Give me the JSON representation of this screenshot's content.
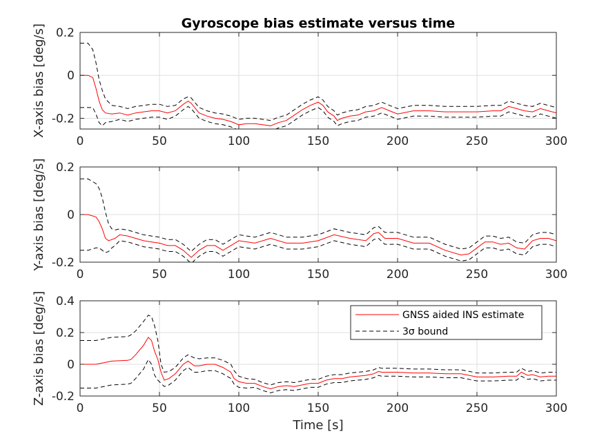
{
  "figure": {
    "title": "Gyroscope bias estimate versus time",
    "xlabel": "Time [s]"
  },
  "legend": {
    "placement": "upper-right-of-bottom-panel",
    "entries": [
      {
        "label": "GNSS aided INS estimate",
        "color": "#ff0000",
        "style": "solid"
      },
      {
        "label": "3σ bound",
        "color": "#000000",
        "style": "dashed"
      }
    ]
  },
  "chart_data": [
    {
      "type": "line",
      "ylabel": "X-axis bias [deg/s]",
      "xlim": [
        0,
        300
      ],
      "ylim": [
        -0.25,
        0.2
      ],
      "xticks": [
        0,
        50,
        100,
        150,
        200,
        250,
        300
      ],
      "yticks": [
        -0.2,
        0,
        0.2
      ],
      "ytick_labels": [
        "-0.2",
        "0",
        "0.2"
      ],
      "grid": true,
      "x": [
        0,
        5,
        8,
        10,
        12,
        14,
        16,
        20,
        25,
        30,
        35,
        40,
        45,
        50,
        55,
        60,
        65,
        68,
        70,
        75,
        80,
        85,
        90,
        95,
        100,
        105,
        110,
        115,
        120,
        125,
        130,
        135,
        140,
        145,
        150,
        153,
        156,
        160,
        162,
        165,
        170,
        175,
        180,
        185,
        190,
        195,
        200,
        210,
        220,
        230,
        240,
        250,
        260,
        265,
        270,
        275,
        280,
        285,
        290,
        295,
        300
      ],
      "series": [
        {
          "name": "GNSS aided INS estimate",
          "role": "estimate",
          "color": "#ff0000",
          "values": [
            0,
            0,
            -0.01,
            -0.06,
            -0.12,
            -0.16,
            -0.175,
            -0.18,
            -0.175,
            -0.185,
            -0.175,
            -0.17,
            -0.165,
            -0.165,
            -0.175,
            -0.165,
            -0.135,
            -0.12,
            -0.13,
            -0.175,
            -0.19,
            -0.2,
            -0.205,
            -0.215,
            -0.23,
            -0.225,
            -0.225,
            -0.23,
            -0.235,
            -0.22,
            -0.21,
            -0.185,
            -0.16,
            -0.14,
            -0.125,
            -0.14,
            -0.17,
            -0.19,
            -0.21,
            -0.2,
            -0.19,
            -0.185,
            -0.17,
            -0.165,
            -0.15,
            -0.165,
            -0.18,
            -0.165,
            -0.165,
            -0.17,
            -0.17,
            -0.17,
            -0.165,
            -0.165,
            -0.145,
            -0.155,
            -0.165,
            -0.17,
            -0.155,
            -0.165,
            -0.175
          ]
        },
        {
          "name": "3σ bound",
          "role": "upper",
          "color": "#000000",
          "values": [
            0.15,
            0.15,
            0.12,
            0.06,
            -0.02,
            -0.07,
            -0.11,
            -0.14,
            -0.145,
            -0.155,
            -0.145,
            -0.14,
            -0.135,
            -0.135,
            -0.145,
            -0.14,
            -0.11,
            -0.1,
            -0.105,
            -0.15,
            -0.165,
            -0.175,
            -0.18,
            -0.19,
            -0.205,
            -0.2,
            -0.2,
            -0.205,
            -0.21,
            -0.195,
            -0.185,
            -0.16,
            -0.135,
            -0.115,
            -0.1,
            -0.115,
            -0.145,
            -0.165,
            -0.185,
            -0.175,
            -0.165,
            -0.16,
            -0.145,
            -0.14,
            -0.125,
            -0.14,
            -0.155,
            -0.14,
            -0.14,
            -0.145,
            -0.145,
            -0.145,
            -0.14,
            -0.14,
            -0.12,
            -0.13,
            -0.14,
            -0.145,
            -0.13,
            -0.14,
            -0.15
          ]
        },
        {
          "name": "3σ bound",
          "role": "lower",
          "color": "#000000",
          "values": [
            -0.15,
            -0.15,
            -0.15,
            -0.18,
            -0.22,
            -0.235,
            -0.22,
            -0.215,
            -0.205,
            -0.215,
            -0.205,
            -0.2,
            -0.195,
            -0.195,
            -0.205,
            -0.19,
            -0.16,
            -0.145,
            -0.155,
            -0.2,
            -0.215,
            -0.225,
            -0.23,
            -0.24,
            -0.255,
            -0.25,
            -0.25,
            -0.255,
            -0.26,
            -0.245,
            -0.235,
            -0.21,
            -0.185,
            -0.165,
            -0.15,
            -0.165,
            -0.195,
            -0.215,
            -0.235,
            -0.225,
            -0.215,
            -0.21,
            -0.195,
            -0.19,
            -0.175,
            -0.19,
            -0.205,
            -0.19,
            -0.19,
            -0.195,
            -0.195,
            -0.195,
            -0.19,
            -0.19,
            -0.17,
            -0.18,
            -0.19,
            -0.195,
            -0.18,
            -0.19,
            -0.2
          ]
        }
      ]
    },
    {
      "type": "line",
      "ylabel": "Y-axis bias [deg/s]",
      "xlim": [
        0,
        300
      ],
      "ylim": [
        -0.2,
        0.2
      ],
      "xticks": [
        0,
        50,
        100,
        150,
        200,
        250,
        300
      ],
      "yticks": [
        -0.2,
        0,
        0.2
      ],
      "ytick_labels": [
        "-0.2",
        "0",
        "0.2"
      ],
      "grid": true,
      "x": [
        0,
        5,
        10,
        12,
        14,
        16,
        18,
        20,
        22,
        25,
        30,
        35,
        40,
        45,
        50,
        55,
        60,
        65,
        70,
        75,
        80,
        85,
        90,
        95,
        100,
        110,
        120,
        130,
        140,
        150,
        160,
        170,
        180,
        185,
        188,
        192,
        200,
        210,
        220,
        230,
        240,
        245,
        250,
        255,
        260,
        265,
        270,
        275,
        280,
        285,
        290,
        295,
        300
      ],
      "series": [
        {
          "name": "GNSS aided INS estimate",
          "role": "estimate",
          "color": "#ff0000",
          "values": [
            0,
            0,
            -0.01,
            -0.03,
            -0.06,
            -0.1,
            -0.11,
            -0.105,
            -0.1,
            -0.085,
            -0.09,
            -0.1,
            -0.11,
            -0.115,
            -0.12,
            -0.13,
            -0.13,
            -0.15,
            -0.18,
            -0.15,
            -0.13,
            -0.13,
            -0.15,
            -0.13,
            -0.11,
            -0.12,
            -0.1,
            -0.12,
            -0.12,
            -0.11,
            -0.085,
            -0.1,
            -0.11,
            -0.08,
            -0.075,
            -0.1,
            -0.1,
            -0.12,
            -0.12,
            -0.15,
            -0.17,
            -0.165,
            -0.14,
            -0.115,
            -0.115,
            -0.125,
            -0.12,
            -0.14,
            -0.145,
            -0.11,
            -0.1,
            -0.1,
            -0.11
          ]
        },
        {
          "name": "3σ bound",
          "role": "upper",
          "color": "#000000",
          "values": [
            0.15,
            0.15,
            0.13,
            0.11,
            0.07,
            0.01,
            -0.04,
            -0.06,
            -0.065,
            -0.06,
            -0.065,
            -0.075,
            -0.085,
            -0.09,
            -0.095,
            -0.105,
            -0.105,
            -0.125,
            -0.155,
            -0.125,
            -0.105,
            -0.105,
            -0.125,
            -0.105,
            -0.085,
            -0.095,
            -0.075,
            -0.095,
            -0.095,
            -0.085,
            -0.06,
            -0.075,
            -0.085,
            -0.055,
            -0.05,
            -0.075,
            -0.075,
            -0.095,
            -0.095,
            -0.125,
            -0.145,
            -0.14,
            -0.115,
            -0.09,
            -0.09,
            -0.1,
            -0.095,
            -0.115,
            -0.12,
            -0.085,
            -0.075,
            -0.075,
            -0.085
          ]
        },
        {
          "name": "3σ bound",
          "role": "lower",
          "color": "#000000",
          "values": [
            -0.15,
            -0.15,
            -0.14,
            -0.14,
            -0.15,
            -0.16,
            -0.155,
            -0.14,
            -0.13,
            -0.11,
            -0.115,
            -0.125,
            -0.135,
            -0.14,
            -0.145,
            -0.155,
            -0.155,
            -0.175,
            -0.205,
            -0.175,
            -0.155,
            -0.155,
            -0.175,
            -0.155,
            -0.135,
            -0.145,
            -0.125,
            -0.145,
            -0.145,
            -0.135,
            -0.11,
            -0.125,
            -0.135,
            -0.105,
            -0.1,
            -0.125,
            -0.125,
            -0.145,
            -0.145,
            -0.175,
            -0.195,
            -0.19,
            -0.165,
            -0.14,
            -0.14,
            -0.15,
            -0.145,
            -0.165,
            -0.17,
            -0.135,
            -0.125,
            -0.125,
            -0.135
          ]
        }
      ]
    },
    {
      "type": "line",
      "ylabel": "Z-axis bias [deg/s]",
      "xlim": [
        0,
        300
      ],
      "ylim": [
        -0.2,
        0.4
      ],
      "xticks": [
        0,
        50,
        100,
        150,
        200,
        250,
        300
      ],
      "yticks": [
        -0.2,
        0,
        0.2,
        0.4
      ],
      "ytick_labels": [
        "-0.2",
        "0",
        "0.2",
        "0.4"
      ],
      "grid": true,
      "x": [
        0,
        10,
        15,
        20,
        30,
        32,
        35,
        40,
        43,
        45,
        47,
        49,
        51,
        53,
        56,
        60,
        65,
        68,
        72,
        75,
        80,
        85,
        90,
        95,
        97,
        100,
        105,
        110,
        115,
        120,
        125,
        130,
        135,
        140,
        145,
        150,
        155,
        160,
        165,
        170,
        175,
        180,
        185,
        188,
        190,
        195,
        200,
        210,
        220,
        230,
        240,
        250,
        260,
        270,
        275,
        278,
        282,
        285,
        290,
        295,
        300
      ],
      "series": [
        {
          "name": "GNSS aided INS estimate",
          "role": "estimate",
          "color": "#ff0000",
          "values": [
            0,
            0,
            0.01,
            0.02,
            0.025,
            0.03,
            0.06,
            0.12,
            0.17,
            0.15,
            0.08,
            0.03,
            -0.05,
            -0.1,
            -0.09,
            -0.06,
            0.0,
            0.02,
            -0.01,
            -0.01,
            -0.0,
            0.0,
            -0.02,
            -0.05,
            -0.09,
            -0.11,
            -0.12,
            -0.12,
            -0.14,
            -0.155,
            -0.14,
            -0.135,
            -0.14,
            -0.13,
            -0.12,
            -0.12,
            -0.1,
            -0.09,
            -0.09,
            -0.08,
            -0.075,
            -0.07,
            -0.06,
            -0.045,
            -0.05,
            -0.05,
            -0.05,
            -0.055,
            -0.055,
            -0.06,
            -0.06,
            -0.08,
            -0.08,
            -0.075,
            -0.075,
            -0.05,
            -0.07,
            -0.065,
            -0.08,
            -0.075,
            -0.075
          ]
        },
        {
          "name": "3σ bound",
          "role": "upper",
          "color": "#000000",
          "values": [
            0.15,
            0.15,
            0.16,
            0.17,
            0.175,
            0.185,
            0.21,
            0.27,
            0.31,
            0.3,
            0.24,
            0.15,
            0.0,
            -0.05,
            -0.045,
            -0.02,
            0.04,
            0.06,
            0.04,
            0.035,
            0.04,
            0.04,
            0.025,
            0.0,
            -0.04,
            -0.075,
            -0.09,
            -0.095,
            -0.115,
            -0.13,
            -0.115,
            -0.11,
            -0.115,
            -0.105,
            -0.095,
            -0.095,
            -0.075,
            -0.065,
            -0.065,
            -0.055,
            -0.05,
            -0.045,
            -0.035,
            -0.02,
            -0.025,
            -0.025,
            -0.025,
            -0.03,
            -0.03,
            -0.035,
            -0.035,
            -0.055,
            -0.055,
            -0.05,
            -0.05,
            -0.025,
            -0.045,
            -0.04,
            -0.055,
            -0.05,
            -0.05
          ]
        },
        {
          "name": "3σ bound",
          "role": "lower",
          "color": "#000000",
          "values": [
            -0.15,
            -0.15,
            -0.14,
            -0.13,
            -0.125,
            -0.12,
            -0.09,
            -0.03,
            0.03,
            0.0,
            -0.07,
            -0.1,
            -0.12,
            -0.14,
            -0.13,
            -0.1,
            -0.04,
            -0.02,
            -0.05,
            -0.05,
            -0.04,
            -0.04,
            -0.06,
            -0.09,
            -0.125,
            -0.145,
            -0.15,
            -0.145,
            -0.165,
            -0.18,
            -0.165,
            -0.16,
            -0.165,
            -0.155,
            -0.145,
            -0.145,
            -0.125,
            -0.115,
            -0.115,
            -0.105,
            -0.1,
            -0.095,
            -0.085,
            -0.07,
            -0.075,
            -0.075,
            -0.075,
            -0.08,
            -0.08,
            -0.085,
            -0.085,
            -0.105,
            -0.105,
            -0.1,
            -0.1,
            -0.075,
            -0.095,
            -0.09,
            -0.105,
            -0.1,
            -0.1
          ]
        }
      ]
    }
  ]
}
